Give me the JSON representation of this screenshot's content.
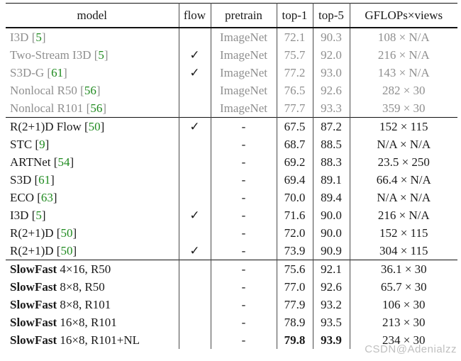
{
  "watermark": "CSDN@Adenialzz",
  "colors": {
    "gray_text": "#8f8f8f",
    "black_text": "#1a1a1a",
    "cite_green": "#1f8a1f",
    "rule": "#111111",
    "watermark": "#b9b9b9"
  },
  "table": {
    "columns": [
      "model",
      "flow",
      "pretrain",
      "top-1",
      "top-5",
      "GFLOPs×views"
    ],
    "groups": [
      {
        "style": "gray",
        "rows": [
          {
            "name": "I3D",
            "cite": "5",
            "flow": "",
            "pretrain": "ImageNet",
            "top1": "72.1",
            "top5": "90.3",
            "gflops": "108 × N/A"
          },
          {
            "name": "Two-Stream I3D",
            "cite": "5",
            "flow": "✓",
            "pretrain": "ImageNet",
            "top1": "75.7",
            "top5": "92.0",
            "gflops": "216 × N/A"
          },
          {
            "name": "S3D-G",
            "cite": "61",
            "flow": "✓",
            "pretrain": "ImageNet",
            "top1": "77.2",
            "top5": "93.0",
            "gflops": "143 × N/A"
          },
          {
            "name": "Nonlocal R50",
            "cite": "56",
            "flow": "",
            "pretrain": "ImageNet",
            "top1": "76.5",
            "top5": "92.6",
            "gflops": "282 × 30"
          },
          {
            "name": "Nonlocal R101",
            "cite": "56",
            "flow": "",
            "pretrain": "ImageNet",
            "top1": "77.7",
            "top5": "93.3",
            "gflops": "359 × 30"
          }
        ]
      },
      {
        "style": "plain",
        "rows": [
          {
            "name": "R(2+1)D Flow",
            "cite": "50",
            "flow": "✓",
            "pretrain": "-",
            "top1": "67.5",
            "top5": "87.2",
            "gflops": "152 × 115"
          },
          {
            "name": "STC",
            "cite": "9",
            "flow": "",
            "pretrain": "-",
            "top1": "68.7",
            "top5": "88.5",
            "gflops": "N/A × N/A"
          },
          {
            "name": "ARTNet",
            "cite": "54",
            "flow": "",
            "pretrain": "-",
            "top1": "69.2",
            "top5": "88.3",
            "gflops": "23.5 × 250"
          },
          {
            "name": "S3D",
            "cite": "61",
            "flow": "",
            "pretrain": "-",
            "top1": "69.4",
            "top5": "89.1",
            "gflops": "66.4 × N/A"
          },
          {
            "name": "ECO",
            "cite": "63",
            "flow": "",
            "pretrain": "-",
            "top1": "70.0",
            "top5": "89.4",
            "gflops": "N/A × N/A"
          },
          {
            "name": "I3D",
            "cite": "5",
            "flow": "✓",
            "pretrain": "-",
            "top1": "71.6",
            "top5": "90.0",
            "gflops": "216 × N/A"
          },
          {
            "name": "R(2+1)D",
            "cite": "50",
            "flow": "",
            "pretrain": "-",
            "top1": "72.0",
            "top5": "90.0",
            "gflops": "152 × 115"
          },
          {
            "name": "R(2+1)D",
            "cite": "50",
            "flow": "✓",
            "pretrain": "-",
            "top1": "73.9",
            "top5": "90.9",
            "gflops": "304 × 115"
          }
        ]
      },
      {
        "style": "slowfast",
        "rows": [
          {
            "bold": "SlowFast",
            "rest": " 4×16, R50",
            "flow": "",
            "pretrain": "-",
            "top1": "75.6",
            "top5": "92.1",
            "gflops": "36.1 × 30"
          },
          {
            "bold": "SlowFast",
            "rest": " 8×8, R50",
            "flow": "",
            "pretrain": "-",
            "top1": "77.0",
            "top5": "92.6",
            "gflops": "65.7 × 30"
          },
          {
            "bold": "SlowFast",
            "rest": " 8×8, R101",
            "flow": "",
            "pretrain": "-",
            "top1": "77.9",
            "top5": "93.2",
            "gflops": "106 × 30"
          },
          {
            "bold": "SlowFast",
            "rest": " 16×8, R101",
            "flow": "",
            "pretrain": "-",
            "top1": "78.9",
            "top5": "93.5",
            "gflops": "213 × 30"
          },
          {
            "bold": "SlowFast",
            "rest": " 16×8, R101+NL",
            "flow": "",
            "pretrain": "-",
            "top1": "79.8",
            "top5": "93.9",
            "gflops": "234 × 30",
            "bold_results": true
          }
        ]
      }
    ]
  }
}
